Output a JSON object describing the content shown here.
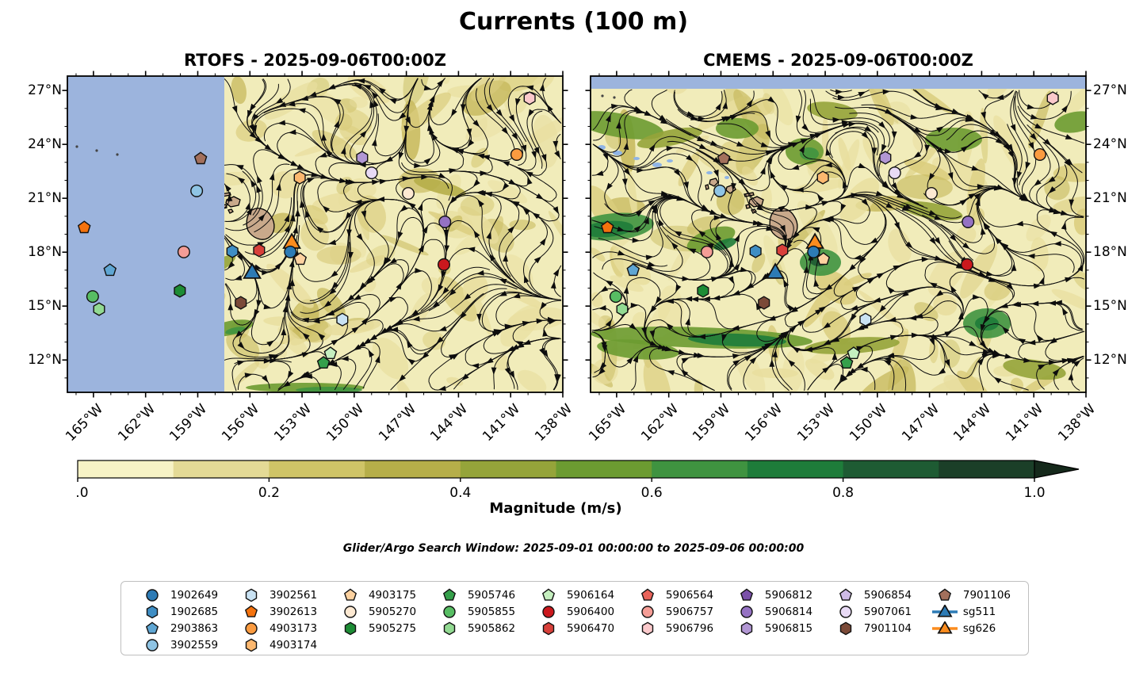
{
  "figure": {
    "title": "Currents (100 m)",
    "panels": [
      {
        "id": "rtofs",
        "title": "RTOFS - 2025-09-06T00:00Z"
      },
      {
        "id": "cmems",
        "title": "CMEMS - 2025-09-06T00:00Z"
      }
    ],
    "search_window": "Glider/Argo Search Window: 2025-09-01 00:00:00 to 2025-09-06 00:00:00"
  },
  "axes": {
    "lat_tick_labels": [
      "27°N",
      "24°N",
      "21°N",
      "18°N",
      "15°N",
      "12°N"
    ],
    "lon_tick_labels": [
      "165°W",
      "162°W",
      "159°W",
      "156°W",
      "153°W",
      "150°W",
      "147°W",
      "144°W",
      "141°W",
      "138°W"
    ]
  },
  "colorbar": {
    "label": "Magnitude (m/s)",
    "tick_labels": [
      "0.0",
      "0.2",
      "0.4",
      "0.6",
      "0.8",
      "1.0"
    ],
    "segment_colors": [
      "#f7f3c6",
      "#e4da96",
      "#cfc467",
      "#b6ae49",
      "#95a43a",
      "#6c9b31",
      "#3f9340",
      "#1e7c3a",
      "#1e5b33",
      "#1b3f28"
    ],
    "over_color": "#15291b"
  },
  "map": {
    "background_color": "#f1ecba",
    "masked_color": "#9cb4dd",
    "land_color": "#c9a98b",
    "streamline_color": "#0d0d0d"
  },
  "chart_data": {
    "type": "map-streamplot",
    "description": "Ocean current magnitude (m/s) at 100 m with streamlines, Argo floats and gliders; lon 166.5W-138W, lat ~10N-28N",
    "floats": [
      {
        "id": "1902649",
        "marker": "circle",
        "color": "#2d7bb5",
        "x": 0.45,
        "y": 0.556,
        "on_map": true
      },
      {
        "id": "1902685",
        "marker": "hexagon",
        "color": "#3f8ec4",
        "x": 0.333,
        "y": 0.554,
        "on_map": true
      },
      {
        "id": "2903863",
        "marker": "pentagon",
        "color": "#5fa6d3",
        "x": 0.086,
        "y": 0.614,
        "on_map": true
      },
      {
        "id": "3902559",
        "marker": "circle",
        "color": "#8fc4e4",
        "x": 0.261,
        "y": 0.363,
        "on_map": true
      },
      {
        "id": "3902561",
        "marker": "hexagon",
        "color": "#c9e2f3",
        "x": 0.555,
        "y": 0.77,
        "on_map": true
      },
      {
        "id": "3902613",
        "marker": "pentagon",
        "color": "#f4720d",
        "x": 0.034,
        "y": 0.479,
        "on_map": true
      },
      {
        "id": "4903173",
        "marker": "circle",
        "color": "#fb9b40",
        "x": 0.907,
        "y": 0.248,
        "on_map": true
      },
      {
        "id": "4903174",
        "marker": "hexagon",
        "color": "#fcb86f",
        "x": 0.469,
        "y": 0.321,
        "on_map": true
      },
      {
        "id": "4903175",
        "marker": "pentagon",
        "color": "#fdd2a0",
        "x": 0.47,
        "y": 0.579,
        "on_map": true
      },
      {
        "id": "5905270",
        "marker": "circle",
        "color": "#fde9d2",
        "x": 0.688,
        "y": 0.371,
        "on_map": true
      },
      {
        "id": "5905275",
        "marker": "hexagon",
        "color": "#1d8c35",
        "x": 0.227,
        "y": 0.679,
        "on_map": true
      },
      {
        "id": "5905746",
        "marker": "pentagon",
        "color": "#35a04b",
        "x": 0.517,
        "y": 0.907,
        "on_map": true
      },
      {
        "id": "5905855",
        "marker": "circle",
        "color": "#57bd63",
        "x": 0.051,
        "y": 0.697,
        "on_map": true
      },
      {
        "id": "5905862",
        "marker": "hexagon",
        "color": "#92da92",
        "x": 0.064,
        "y": 0.737,
        "on_map": true
      },
      {
        "id": "5906164",
        "marker": "pentagon",
        "color": "#c5efbf",
        "x": 0.531,
        "y": 0.877,
        "on_map": true
      },
      {
        "id": "5906400",
        "marker": "circle",
        "color": "#cb181d",
        "x": 0.76,
        "y": 0.596,
        "on_map": true
      },
      {
        "id": "5906470",
        "marker": "hexagon",
        "color": "#d8403a",
        "x": 0.387,
        "y": 0.551,
        "on_map": true
      },
      {
        "id": "5906564",
        "marker": "pentagon",
        "color": "#e8635a",
        "on_map": false
      },
      {
        "id": "5906757",
        "marker": "circle",
        "color": "#f59d96",
        "x": 0.235,
        "y": 0.556,
        "on_map": true
      },
      {
        "id": "5906796",
        "marker": "hexagon",
        "color": "#fbc9cb",
        "x": 0.933,
        "y": 0.07,
        "on_map": true
      },
      {
        "id": "5906812",
        "marker": "pentagon",
        "color": "#7b51a9",
        "on_map": false
      },
      {
        "id": "5906814",
        "marker": "circle",
        "color": "#9572c3",
        "x": 0.762,
        "y": 0.461,
        "on_map": true
      },
      {
        "id": "5906815",
        "marker": "hexagon",
        "color": "#b297d4",
        "x": 0.595,
        "y": 0.258,
        "on_map": true
      },
      {
        "id": "5906854",
        "marker": "pentagon",
        "color": "#cfbbe6",
        "on_map": false
      },
      {
        "id": "5907061",
        "marker": "circle",
        "color": "#e8daf5",
        "x": 0.614,
        "y": 0.306,
        "on_map": true
      },
      {
        "id": "7901104",
        "marker": "hexagon",
        "color": "#7b4a38",
        "x": 0.35,
        "y": 0.717,
        "on_map": true
      },
      {
        "id": "7901106",
        "marker": "pentagon",
        "color": "#a3705c",
        "x": 0.269,
        "y": 0.261,
        "on_map": true
      },
      {
        "id": "sg511",
        "marker": "glider-triangle",
        "color": "#2d7bb5",
        "x": 0.373,
        "y": 0.624,
        "on_map": true
      },
      {
        "id": "sg626",
        "marker": "glider-triangle",
        "color": "#fb8c1e",
        "x": 0.453,
        "y": 0.529,
        "on_map": true
      }
    ]
  },
  "legend": {
    "entries": [
      "1902649",
      "1902685",
      "2903863",
      "3902559",
      "3902561",
      "3902613",
      "4903173",
      "4903174",
      "4903175",
      "5905270",
      "5905275",
      "5905746",
      "5905855",
      "5905862",
      "5906164",
      "5906400",
      "5906470",
      "5906564",
      "5906757",
      "5906796",
      "5906812",
      "5906814",
      "5906815",
      "5906854",
      "5907061",
      "7901104",
      "7901106",
      "sg511",
      "sg626"
    ]
  }
}
